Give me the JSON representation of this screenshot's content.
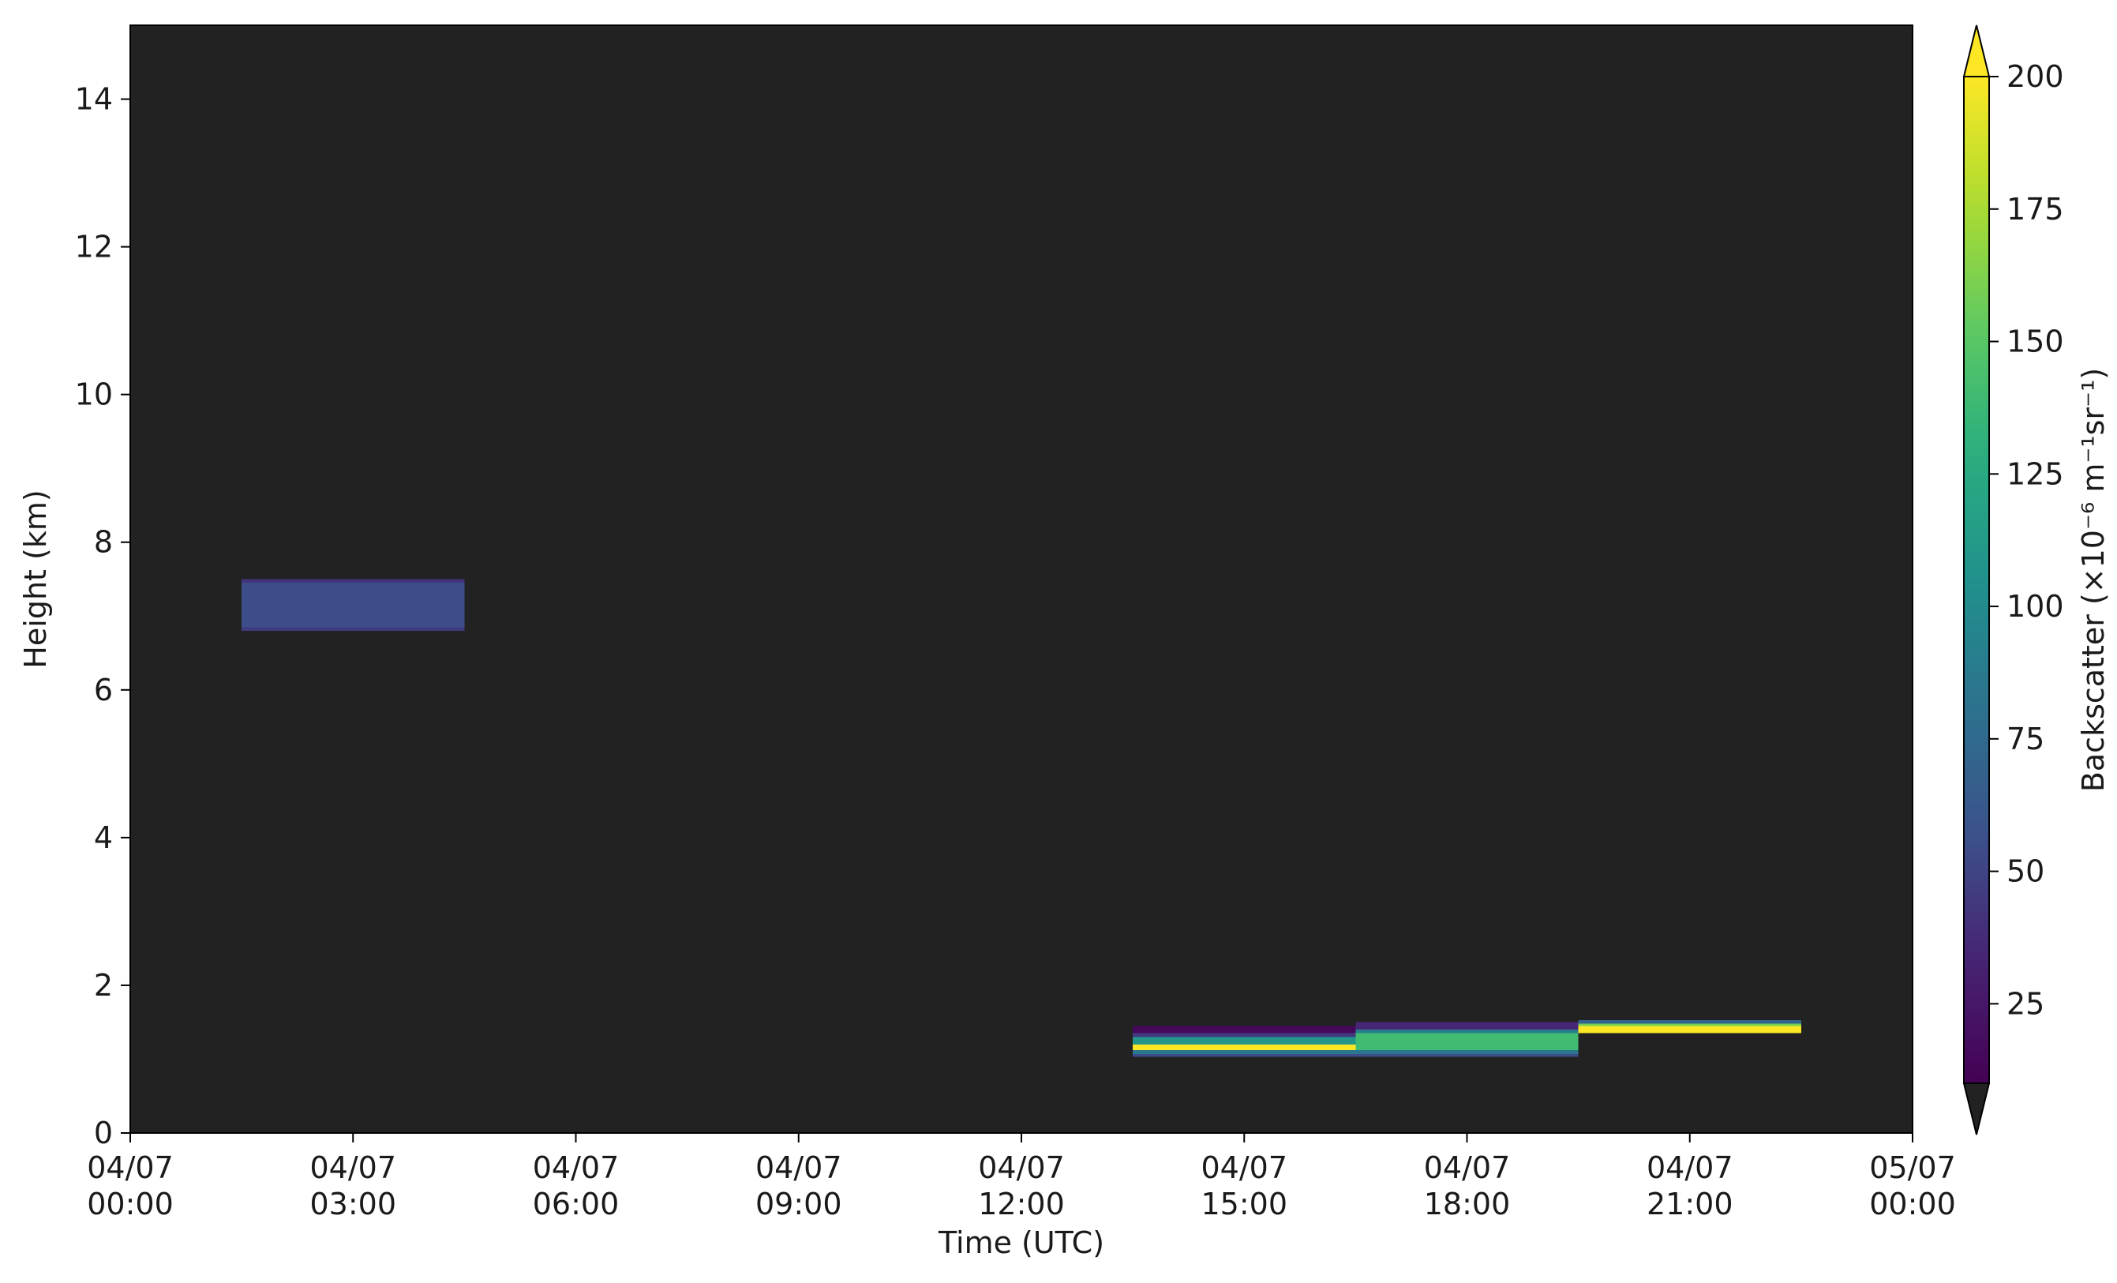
{
  "chart_data": {
    "type": "heatmap",
    "title": "",
    "xlabel": "Time (UTC)",
    "ylabel": "Height (km)",
    "x_range": [
      "2007-04-04T00:00",
      "2007-04-05T00:00"
    ],
    "ylim": [
      0,
      15
    ],
    "grid": false,
    "background_color": "#222222",
    "x_ticks": [
      {
        "value": "2007-04-04T00:00",
        "date": "04/07",
        "time": "00:00"
      },
      {
        "value": "2007-04-04T03:00",
        "date": "04/07",
        "time": "03:00"
      },
      {
        "value": "2007-04-04T06:00",
        "date": "04/07",
        "time": "06:00"
      },
      {
        "value": "2007-04-04T09:00",
        "date": "04/07",
        "time": "09:00"
      },
      {
        "value": "2007-04-04T12:00",
        "date": "04/07",
        "time": "12:00"
      },
      {
        "value": "2007-04-04T15:00",
        "date": "04/07",
        "time": "15:00"
      },
      {
        "value": "2007-04-04T18:00",
        "date": "04/07",
        "time": "18:00"
      },
      {
        "value": "2007-04-04T21:00",
        "date": "04/07",
        "time": "21:00"
      },
      {
        "value": "2007-04-05T00:00",
        "date": "05/07",
        "time": "00:00"
      }
    ],
    "y_ticks": [
      0,
      2,
      4,
      6,
      8,
      10,
      12,
      14
    ],
    "colorbar": {
      "label": "Backscatter (×10⁻⁶ m⁻¹sr⁻¹)",
      "colormap": "viridis",
      "vmin": 10,
      "vmax": 200,
      "extend": "both",
      "extend_low_color": "#222222",
      "extend_high_color": "#fde725",
      "ticks": [
        25,
        50,
        75,
        100,
        125,
        150,
        175,
        200
      ]
    },
    "cells": [
      {
        "t0": "2007-04-04T01:30",
        "t1": "2007-04-04T04:30",
        "z0": 7.45,
        "z1": 7.5,
        "value": 42
      },
      {
        "t0": "2007-04-04T01:30",
        "t1": "2007-04-04T04:30",
        "z0": 6.85,
        "z1": 7.45,
        "value": 55
      },
      {
        "t0": "2007-04-04T01:30",
        "t1": "2007-04-04T04:30",
        "z0": 6.8,
        "z1": 6.85,
        "value": 45
      },
      {
        "t0": "2007-04-04T13:30",
        "t1": "2007-04-04T16:30",
        "z0": 1.35,
        "z1": 1.45,
        "value": 15
      },
      {
        "t0": "2007-04-04T13:30",
        "t1": "2007-04-04T16:30",
        "z0": 1.3,
        "z1": 1.35,
        "value": 45
      },
      {
        "t0": "2007-04-04T13:30",
        "t1": "2007-04-04T16:30",
        "z0": 1.2,
        "z1": 1.3,
        "value": 110
      },
      {
        "t0": "2007-04-04T13:30",
        "t1": "2007-04-04T16:30",
        "z0": 1.12,
        "z1": 1.2,
        "value": 200
      },
      {
        "t0": "2007-04-04T13:30",
        "t1": "2007-04-04T16:30",
        "z0": 1.07,
        "z1": 1.12,
        "value": 85
      },
      {
        "t0": "2007-04-04T13:30",
        "t1": "2007-04-04T16:30",
        "z0": 1.03,
        "z1": 1.07,
        "value": 55
      },
      {
        "t0": "2007-04-04T16:30",
        "t1": "2007-04-04T19:30",
        "z0": 1.4,
        "z1": 1.5,
        "value": 35
      },
      {
        "t0": "2007-04-04T16:30",
        "t1": "2007-04-04T19:30",
        "z0": 1.35,
        "z1": 1.4,
        "value": 90
      },
      {
        "t0": "2007-04-04T16:30",
        "t1": "2007-04-04T19:30",
        "z0": 1.12,
        "z1": 1.35,
        "value": 140
      },
      {
        "t0": "2007-04-04T16:30",
        "t1": "2007-04-04T19:30",
        "z0": 1.07,
        "z1": 1.12,
        "value": 85
      },
      {
        "t0": "2007-04-04T16:30",
        "t1": "2007-04-04T19:30",
        "z0": 1.03,
        "z1": 1.07,
        "value": 55
      },
      {
        "t0": "2007-04-04T19:30",
        "t1": "2007-04-04T22:30",
        "z0": 1.48,
        "z1": 1.53,
        "value": 70
      },
      {
        "t0": "2007-04-04T19:30",
        "t1": "2007-04-04T22:30",
        "z0": 1.45,
        "z1": 1.48,
        "value": 160
      },
      {
        "t0": "2007-04-04T19:30",
        "t1": "2007-04-04T22:30",
        "z0": 1.35,
        "z1": 1.45,
        "value": 200
      }
    ]
  }
}
